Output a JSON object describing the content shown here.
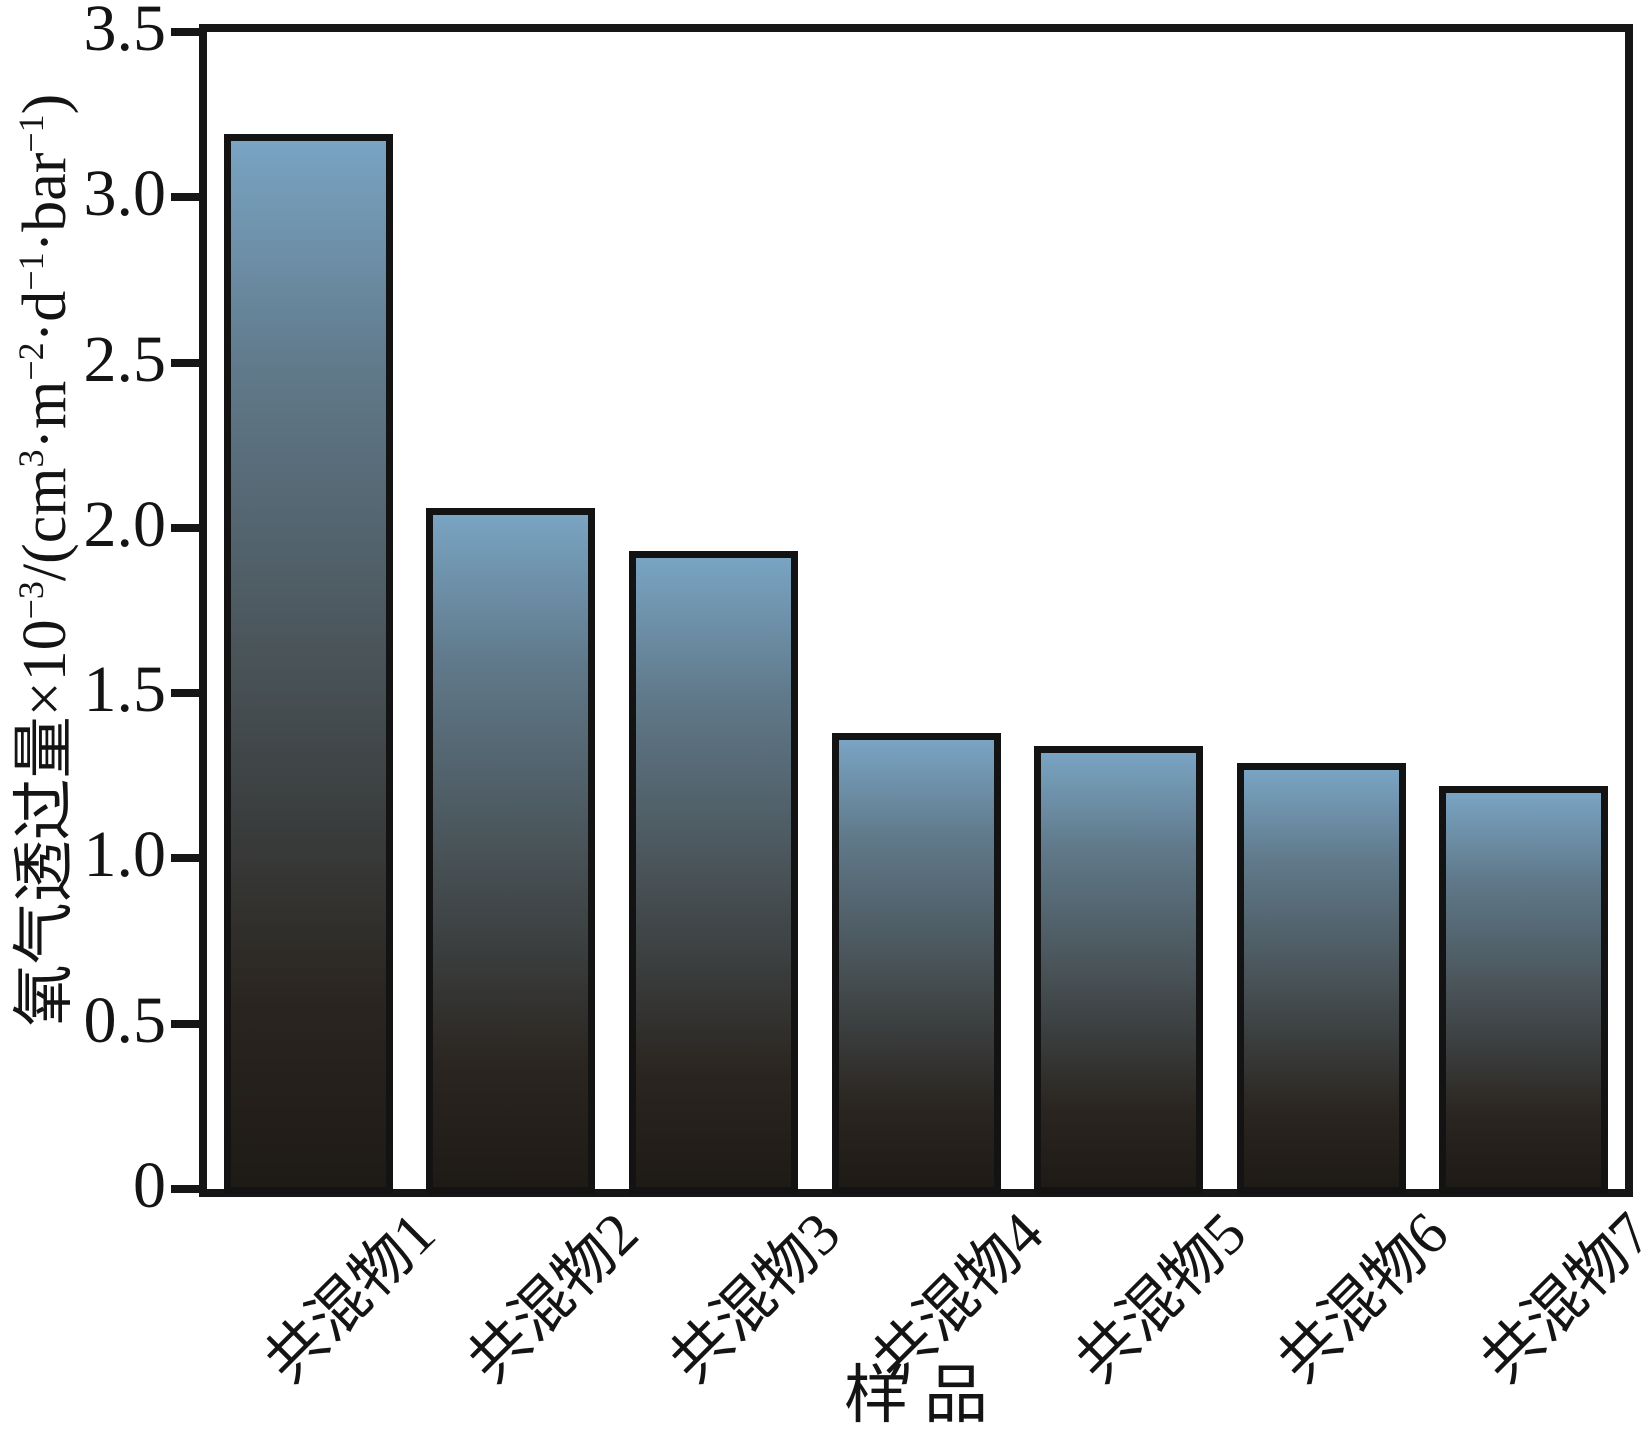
{
  "chart_data": {
    "type": "bar",
    "title": "",
    "categories": [
      "共混物1",
      "共混物2",
      "共混物3",
      "共混物4",
      "共混物5",
      "共混物6",
      "共混物7"
    ],
    "values": [
      3.19,
      2.06,
      1.93,
      1.38,
      1.34,
      1.29,
      1.22
    ],
    "xlabel": "样品",
    "ylabel": "氧气透过量×10⁻³/(cm³·m⁻²·d⁻¹·bar⁻¹)",
    "ylabel_segments": [
      {
        "text": "氧气透过量×10"
      },
      {
        "text": "−3",
        "sup": true
      },
      {
        "text": "/(cm"
      },
      {
        "text": "3",
        "sup": true
      },
      {
        "text": "·m"
      },
      {
        "text": "−2",
        "sup": true
      },
      {
        "text": "·d"
      },
      {
        "text": "−1",
        "sup": true
      },
      {
        "text": "·bar"
      },
      {
        "text": "−1",
        "sup": true
      },
      {
        "text": ")"
      }
    ],
    "ylim": [
      0,
      3.5
    ],
    "yticks": [
      0,
      0.5,
      1.0,
      1.5,
      2.0,
      2.5,
      3.0,
      3.5
    ],
    "ytick_labels": [
      "0",
      "0.5",
      "1.0",
      "1.5",
      "2.0",
      "2.5",
      "3.0",
      "3.5"
    ],
    "grid": false,
    "legend_position": "none",
    "bar_orientation": "vertical",
    "colors": {
      "bar_gradient_top": "#79a4c3",
      "bar_gradient_middle": "#475054",
      "bar_gradient_bottom": "#1e1a16",
      "bar_border": "#131313",
      "axis": "#161616",
      "background": "#ffffff",
      "text": "#141414"
    }
  }
}
